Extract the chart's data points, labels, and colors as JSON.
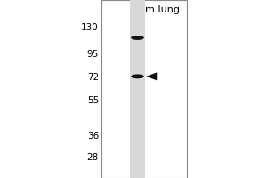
{
  "title": "m.lung",
  "mw_markers": [
    130,
    95,
    72,
    55,
    36,
    28
  ],
  "band1_mw_approx": 115,
  "band2_mw_approx": 73,
  "bg_color": "#ffffff",
  "outer_bg_color": "#ffffff",
  "lane_bg_color": "#d8d8d8",
  "band_color": "#111111",
  "marker_font_size": 7.5,
  "title_font_size": 8,
  "arrow_color": "#111111",
  "fig_width": 3.0,
  "fig_height": 2.0,
  "dpi": 100,
  "border_color": "#888888",
  "log_mw_min": 3.135,
  "log_mw_max": 5.05
}
